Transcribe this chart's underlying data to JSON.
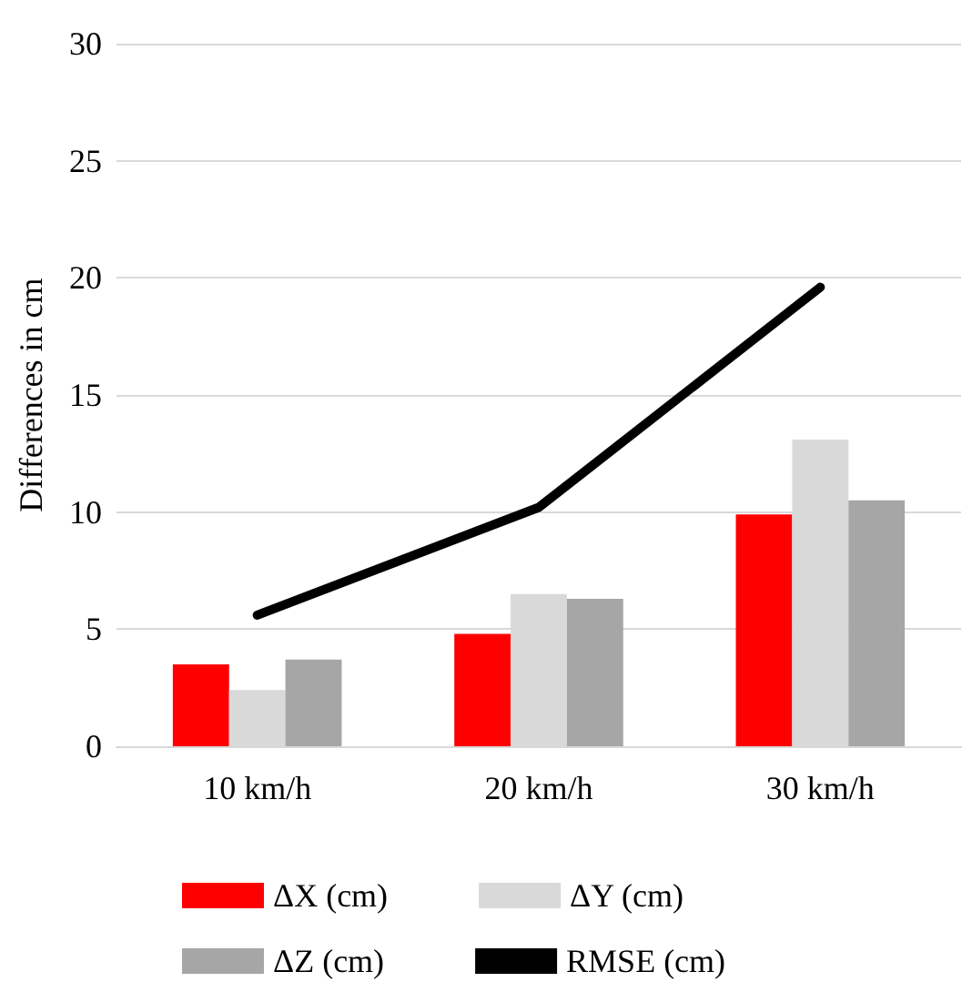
{
  "chart_data": {
    "type": "bar",
    "ylabel": "Differences in cm",
    "categories": [
      "10 km/h",
      "20 km/h",
      "30 km/h"
    ],
    "series": [
      {
        "name": "ΔX (cm)",
        "color": "#ff0000",
        "values": [
          3.5,
          4.8,
          9.9
        ]
      },
      {
        "name": "ΔY (cm)",
        "color": "#d9d9d9",
        "values": [
          2.4,
          6.5,
          13.1
        ]
      },
      {
        "name": "ΔZ (cm)",
        "color": "#a6a6a6",
        "values": [
          3.7,
          6.3,
          10.5
        ]
      },
      {
        "name": "RMSE (cm)",
        "type": "line",
        "color": "#000000",
        "values": [
          5.6,
          10.2,
          19.6
        ]
      }
    ],
    "ylim": [
      0,
      30
    ],
    "yticks": [
      0,
      5,
      10,
      15,
      20,
      25,
      30
    ],
    "grid": "y",
    "legend": "bottom",
    "marker": "none",
    "line_style": "solid"
  }
}
